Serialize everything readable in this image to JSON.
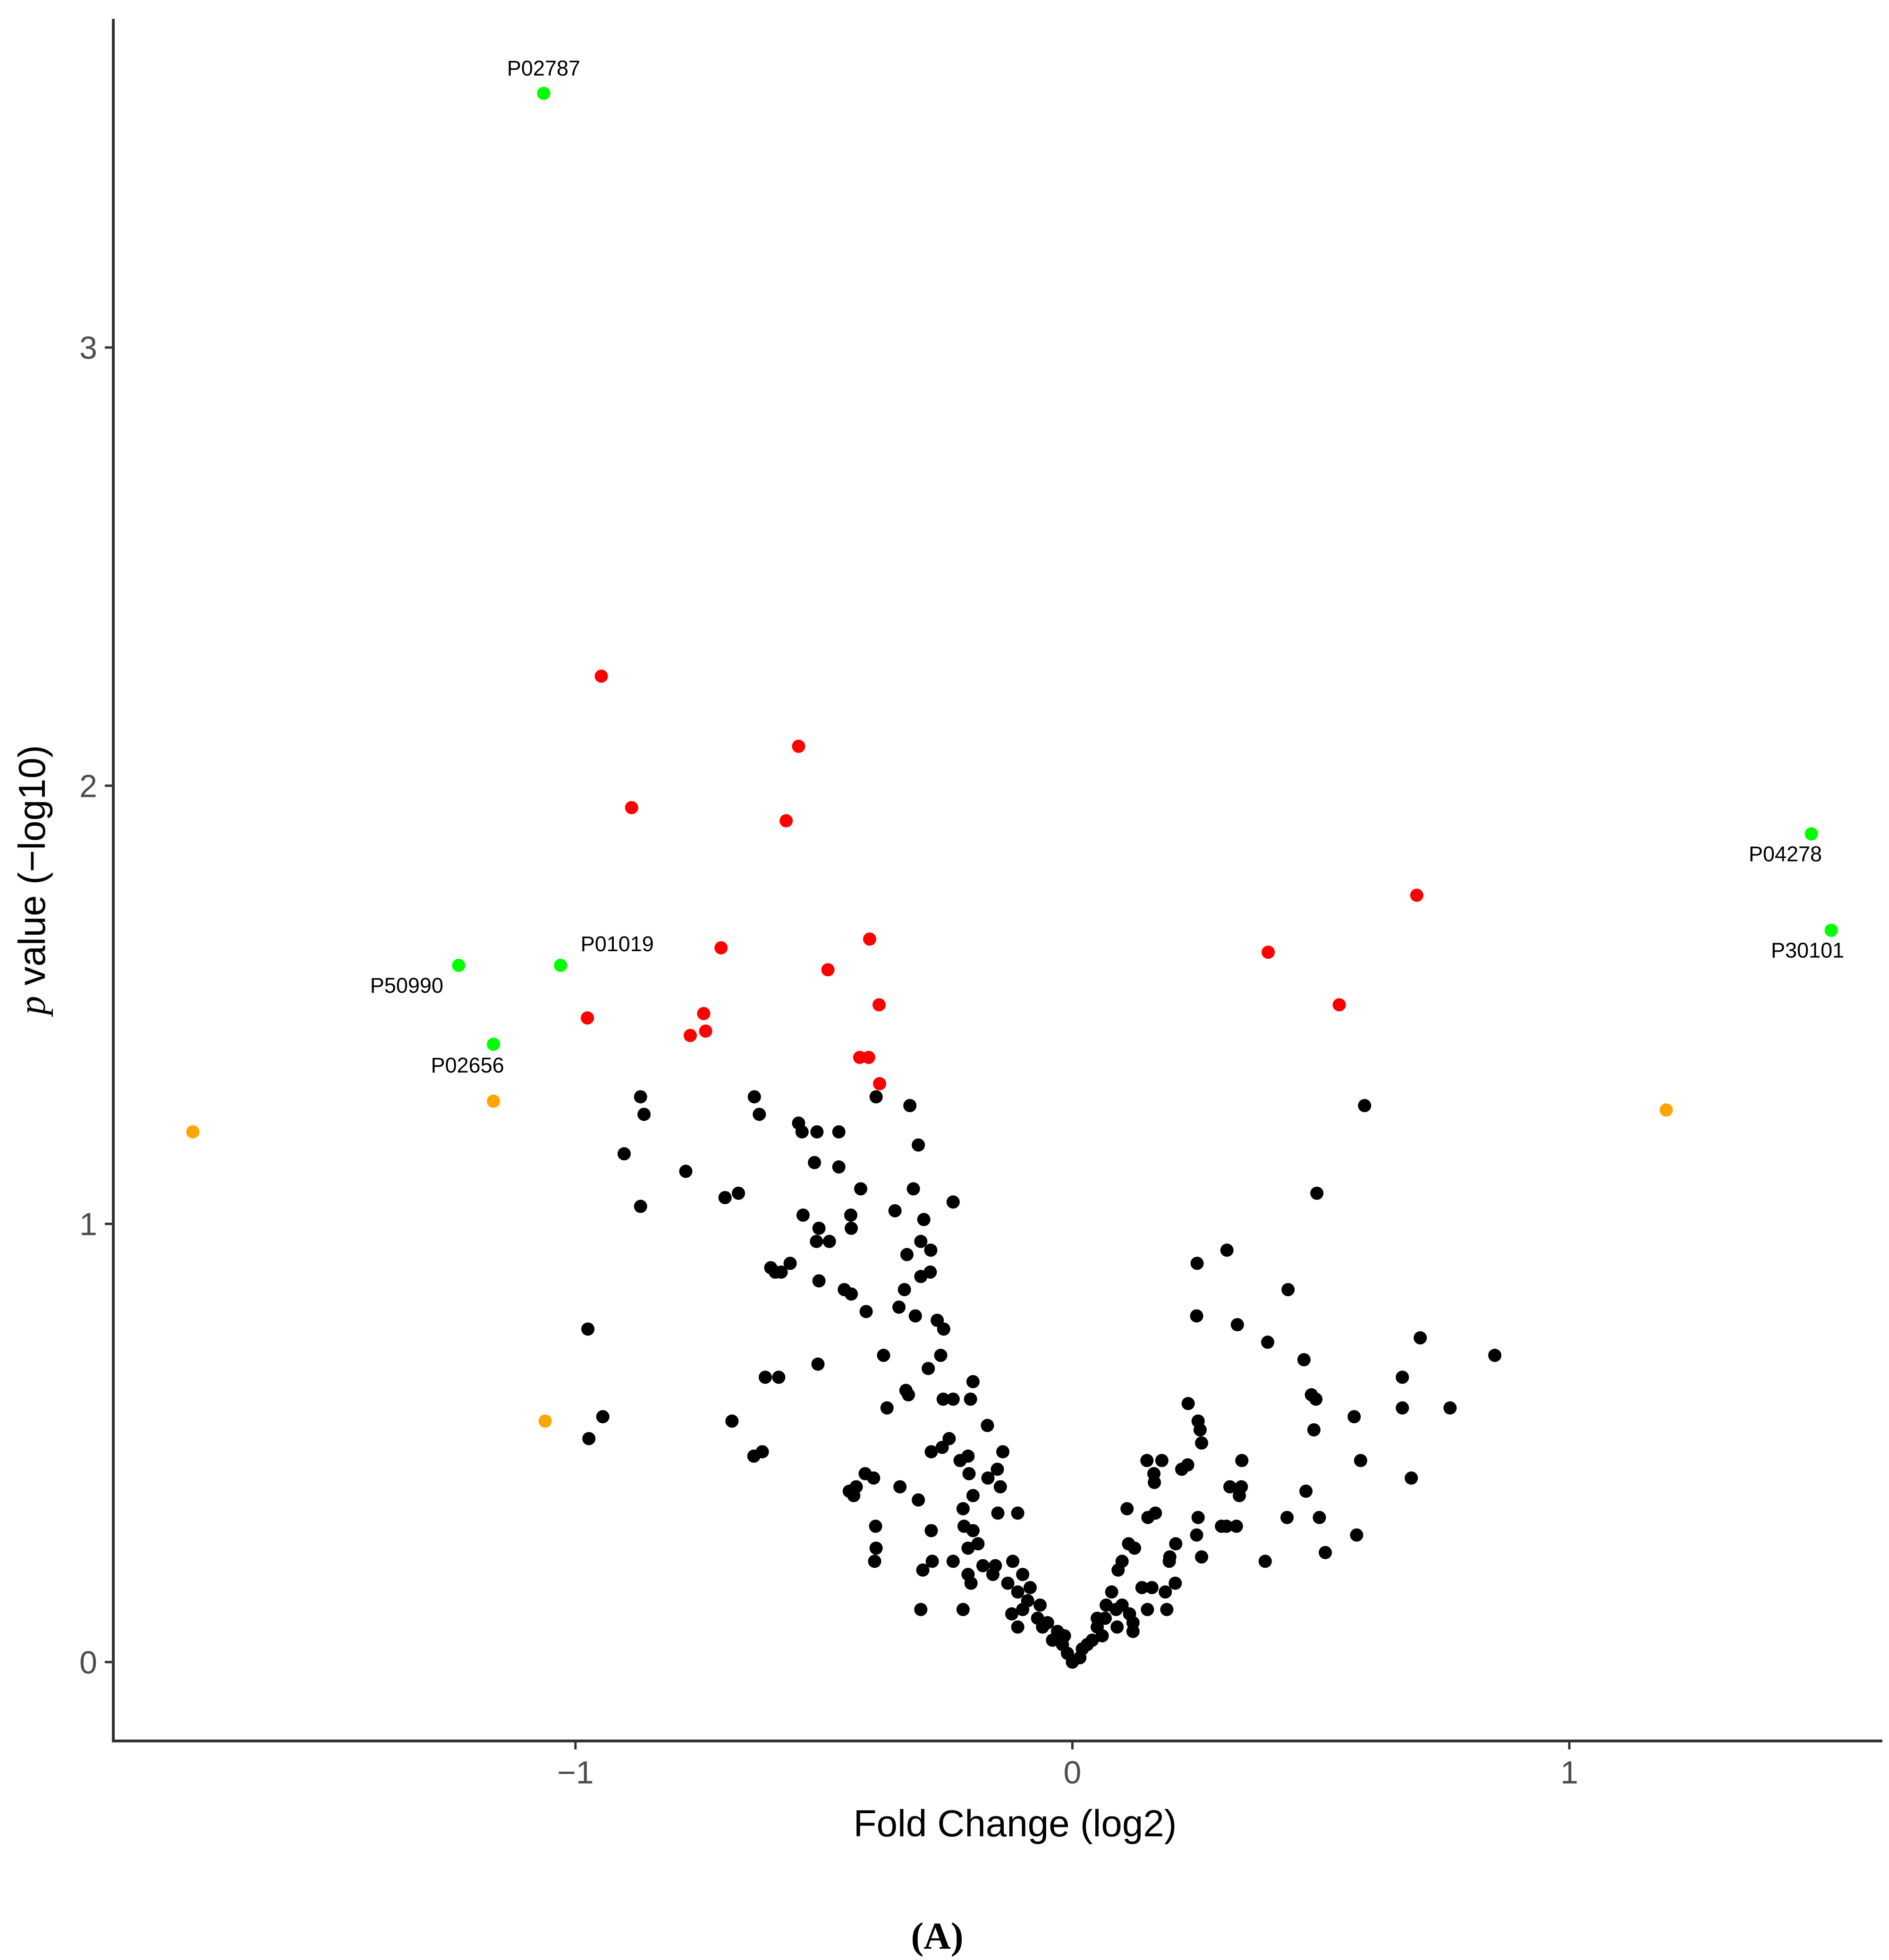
{
  "chart_data": {
    "type": "scatter",
    "title": "",
    "xlabel": "Fold Change (log2)",
    "ylabel_italic": "p",
    "ylabel_rest": " value (−log10)",
    "panel_label": "(A)",
    "xlim": [
      -1.93,
      1.63
    ],
    "ylim": [
      -0.18,
      3.75
    ],
    "x_ticks": [
      -1,
      0,
      1
    ],
    "x_tick_labels": [
      "−1",
      "0",
      "1"
    ],
    "y_ticks": [
      0,
      1,
      2,
      3
    ],
    "y_tick_labels": [
      "0",
      "1",
      "2",
      "3"
    ],
    "grid": false,
    "legend": "none",
    "colors": {
      "labeled": "#00ff00",
      "significant": "#ff0000",
      "large_fold": "#ffa500",
      "not_significant": "#000000"
    },
    "series": [
      {
        "color_key": "labeled",
        "points": [
          {
            "x": -1.064,
            "y": 3.58,
            "label": "P02787"
          },
          {
            "x": -1.235,
            "y": 1.59,
            "label": "P50990"
          },
          {
            "x": -1.03,
            "y": 1.59,
            "label": "P01019"
          },
          {
            "x": -1.165,
            "y": 1.41,
            "label": "P02656"
          },
          {
            "x": 1.487,
            "y": 1.89,
            "label": "P04278"
          },
          {
            "x": 1.527,
            "y": 1.67,
            "label": "P30101"
          }
        ]
      },
      {
        "color_key": "significant",
        "points": [
          {
            "x": -0.948,
            "y": 2.25
          },
          {
            "x": -0.887,
            "y": 1.95
          },
          {
            "x": -0.551,
            "y": 2.09
          },
          {
            "x": -0.576,
            "y": 1.92
          },
          {
            "x": -0.707,
            "y": 1.63
          },
          {
            "x": -0.408,
            "y": 1.65
          },
          {
            "x": -0.492,
            "y": 1.58
          },
          {
            "x": -0.976,
            "y": 1.47
          },
          {
            "x": -0.742,
            "y": 1.48
          },
          {
            "x": -0.738,
            "y": 1.44
          },
          {
            "x": -0.769,
            "y": 1.43
          },
          {
            "x": -0.389,
            "y": 1.5
          },
          {
            "x": -0.428,
            "y": 1.38
          },
          {
            "x": -0.41,
            "y": 1.38
          },
          {
            "x": -0.388,
            "y": 1.32
          },
          {
            "x": 0.394,
            "y": 1.62
          },
          {
            "x": 0.693,
            "y": 1.75
          },
          {
            "x": 0.537,
            "y": 1.5
          }
        ]
      },
      {
        "color_key": "large_fold",
        "points": [
          {
            "x": -1.77,
            "y": 1.21
          },
          {
            "x": -1.165,
            "y": 1.28
          },
          {
            "x": -1.061,
            "y": 0.55
          },
          {
            "x": 1.195,
            "y": 1.26
          }
        ]
      },
      {
        "color_key": "not_significant",
        "points": [
          {
            "x": -0.869,
            "y": 1.29
          },
          {
            "x": -0.862,
            "y": 1.25
          },
          {
            "x": -0.902,
            "y": 1.16
          },
          {
            "x": -0.869,
            "y": 1.04
          },
          {
            "x": -0.975,
            "y": 0.76
          },
          {
            "x": -0.945,
            "y": 0.56
          },
          {
            "x": -0.973,
            "y": 0.51
          },
          {
            "x": -0.778,
            "y": 1.12
          },
          {
            "x": -0.699,
            "y": 1.06
          },
          {
            "x": -0.672,
            "y": 1.07
          },
          {
            "x": -0.64,
            "y": 1.29
          },
          {
            "x": -0.63,
            "y": 1.25
          },
          {
            "x": -0.551,
            "y": 1.23
          },
          {
            "x": -0.544,
            "y": 1.21
          },
          {
            "x": -0.514,
            "y": 1.21
          },
          {
            "x": -0.47,
            "y": 1.21
          },
          {
            "x": -0.519,
            "y": 1.14
          },
          {
            "x": -0.47,
            "y": 1.13
          },
          {
            "x": -0.395,
            "y": 1.29
          },
          {
            "x": -0.327,
            "y": 1.27
          },
          {
            "x": -0.31,
            "y": 1.18
          },
          {
            "x": -0.426,
            "y": 1.08
          },
          {
            "x": -0.32,
            "y": 1.08
          },
          {
            "x": -0.24,
            "y": 1.05
          },
          {
            "x": -0.542,
            "y": 1.02
          },
          {
            "x": -0.51,
            "y": 0.99
          },
          {
            "x": -0.515,
            "y": 0.96
          },
          {
            "x": -0.489,
            "y": 0.96
          },
          {
            "x": -0.446,
            "y": 1.02
          },
          {
            "x": -0.445,
            "y": 0.99
          },
          {
            "x": -0.357,
            "y": 1.03
          },
          {
            "x": -0.299,
            "y": 1.01
          },
          {
            "x": -0.305,
            "y": 0.96
          },
          {
            "x": -0.285,
            "y": 0.94
          },
          {
            "x": -0.333,
            "y": 0.93
          },
          {
            "x": -0.607,
            "y": 0.9
          },
          {
            "x": -0.586,
            "y": 0.89
          },
          {
            "x": -0.568,
            "y": 0.91
          },
          {
            "x": -0.598,
            "y": 0.89
          },
          {
            "x": -0.51,
            "y": 0.87
          },
          {
            "x": -0.459,
            "y": 0.85
          },
          {
            "x": -0.445,
            "y": 0.84
          },
          {
            "x": -0.415,
            "y": 0.8
          },
          {
            "x": -0.338,
            "y": 0.85
          },
          {
            "x": -0.305,
            "y": 0.88
          },
          {
            "x": -0.286,
            "y": 0.89
          },
          {
            "x": -0.349,
            "y": 0.81
          },
          {
            "x": -0.316,
            "y": 0.79
          },
          {
            "x": -0.272,
            "y": 0.78
          },
          {
            "x": -0.259,
            "y": 0.76
          },
          {
            "x": -0.512,
            "y": 0.68
          },
          {
            "x": -0.618,
            "y": 0.65
          },
          {
            "x": -0.591,
            "y": 0.65
          },
          {
            "x": -0.685,
            "y": 0.55
          },
          {
            "x": -0.641,
            "y": 0.47
          },
          {
            "x": -0.624,
            "y": 0.48
          },
          {
            "x": -0.38,
            "y": 0.7
          },
          {
            "x": -0.29,
            "y": 0.67
          },
          {
            "x": -0.265,
            "y": 0.7
          },
          {
            "x": -0.335,
            "y": 0.62
          },
          {
            "x": -0.33,
            "y": 0.61
          },
          {
            "x": -0.373,
            "y": 0.58
          },
          {
            "x": -0.26,
            "y": 0.6
          },
          {
            "x": -0.24,
            "y": 0.6
          },
          {
            "x": -0.2,
            "y": 0.64
          },
          {
            "x": -0.205,
            "y": 0.6
          },
          {
            "x": -0.171,
            "y": 0.54
          },
          {
            "x": -0.284,
            "y": 0.48
          },
          {
            "x": -0.262,
            "y": 0.49
          },
          {
            "x": -0.248,
            "y": 0.51
          },
          {
            "x": -0.226,
            "y": 0.46
          },
          {
            "x": -0.21,
            "y": 0.47
          },
          {
            "x": -0.14,
            "y": 0.48
          },
          {
            "x": -0.151,
            "y": 0.44
          },
          {
            "x": -0.417,
            "y": 0.43
          },
          {
            "x": -0.4,
            "y": 0.42
          },
          {
            "x": -0.347,
            "y": 0.4
          },
          {
            "x": -0.435,
            "y": 0.4
          },
          {
            "x": -0.449,
            "y": 0.39
          },
          {
            "x": -0.44,
            "y": 0.38
          },
          {
            "x": -0.31,
            "y": 0.37
          },
          {
            "x": -0.208,
            "y": 0.43
          },
          {
            "x": -0.17,
            "y": 0.42
          },
          {
            "x": -0.145,
            "y": 0.4
          },
          {
            "x": -0.22,
            "y": 0.35
          },
          {
            "x": -0.2,
            "y": 0.38
          },
          {
            "x": -0.15,
            "y": 0.34
          },
          {
            "x": -0.11,
            "y": 0.34
          },
          {
            "x": -0.396,
            "y": 0.31
          },
          {
            "x": -0.395,
            "y": 0.26
          },
          {
            "x": -0.398,
            "y": 0.23
          },
          {
            "x": -0.284,
            "y": 0.3
          },
          {
            "x": -0.218,
            "y": 0.31
          },
          {
            "x": -0.2,
            "y": 0.3
          },
          {
            "x": -0.21,
            "y": 0.26
          },
          {
            "x": -0.19,
            "y": 0.27
          },
          {
            "x": -0.301,
            "y": 0.21
          },
          {
            "x": -0.282,
            "y": 0.23
          },
          {
            "x": -0.24,
            "y": 0.23
          },
          {
            "x": -0.21,
            "y": 0.2
          },
          {
            "x": -0.204,
            "y": 0.18
          },
          {
            "x": -0.18,
            "y": 0.22
          },
          {
            "x": -0.155,
            "y": 0.22
          },
          {
            "x": -0.16,
            "y": 0.2
          },
          {
            "x": -0.12,
            "y": 0.23
          },
          {
            "x": -0.1,
            "y": 0.2
          },
          {
            "x": -0.13,
            "y": 0.18
          },
          {
            "x": -0.11,
            "y": 0.16
          },
          {
            "x": -0.085,
            "y": 0.17
          },
          {
            "x": -0.09,
            "y": 0.14
          },
          {
            "x": -0.065,
            "y": 0.13
          },
          {
            "x": -0.07,
            "y": 0.1
          },
          {
            "x": -0.05,
            "y": 0.09
          },
          {
            "x": -0.03,
            "y": 0.07
          },
          {
            "x": -0.02,
            "y": 0.04
          },
          {
            "x": -0.01,
            "y": 0.02
          },
          {
            "x": 0.0,
            "y": 0.0
          },
          {
            "x": -0.016,
            "y": 0.06
          },
          {
            "x": -0.04,
            "y": 0.05
          },
          {
            "x": -0.06,
            "y": 0.08
          },
          {
            "x": -0.305,
            "y": 0.12
          },
          {
            "x": -0.22,
            "y": 0.12
          },
          {
            "x": -0.1,
            "y": 0.12
          },
          {
            "x": -0.11,
            "y": 0.08
          },
          {
            "x": -0.122,
            "y": 0.11
          },
          {
            "x": 0.588,
            "y": 1.27
          },
          {
            "x": 0.492,
            "y": 1.07
          },
          {
            "x": 0.311,
            "y": 0.94
          },
          {
            "x": 0.251,
            "y": 0.91
          },
          {
            "x": 0.434,
            "y": 0.85
          },
          {
            "x": 0.25,
            "y": 0.79
          },
          {
            "x": 0.332,
            "y": 0.77
          },
          {
            "x": 0.393,
            "y": 0.73
          },
          {
            "x": 0.7,
            "y": 0.74
          },
          {
            "x": 0.85,
            "y": 0.7
          },
          {
            "x": 0.466,
            "y": 0.69
          },
          {
            "x": 0.664,
            "y": 0.65
          },
          {
            "x": 0.481,
            "y": 0.61
          },
          {
            "x": 0.49,
            "y": 0.6
          },
          {
            "x": 0.233,
            "y": 0.59
          },
          {
            "x": 0.664,
            "y": 0.58
          },
          {
            "x": 0.76,
            "y": 0.58
          },
          {
            "x": 0.253,
            "y": 0.55
          },
          {
            "x": 0.257,
            "y": 0.53
          },
          {
            "x": 0.567,
            "y": 0.56
          },
          {
            "x": 0.486,
            "y": 0.53
          },
          {
            "x": 0.26,
            "y": 0.5
          },
          {
            "x": 0.15,
            "y": 0.46
          },
          {
            "x": 0.18,
            "y": 0.46
          },
          {
            "x": 0.232,
            "y": 0.45
          },
          {
            "x": 0.341,
            "y": 0.46
          },
          {
            "x": 0.164,
            "y": 0.43
          },
          {
            "x": 0.165,
            "y": 0.41
          },
          {
            "x": 0.22,
            "y": 0.44
          },
          {
            "x": 0.58,
            "y": 0.46
          },
          {
            "x": 0.682,
            "y": 0.42
          },
          {
            "x": 0.317,
            "y": 0.4
          },
          {
            "x": 0.336,
            "y": 0.38
          },
          {
            "x": 0.34,
            "y": 0.4
          },
          {
            "x": 0.47,
            "y": 0.39
          },
          {
            "x": 0.11,
            "y": 0.35
          },
          {
            "x": 0.152,
            "y": 0.33
          },
          {
            "x": 0.167,
            "y": 0.34
          },
          {
            "x": 0.253,
            "y": 0.33
          },
          {
            "x": 0.31,
            "y": 0.31
          },
          {
            "x": 0.3,
            "y": 0.31
          },
          {
            "x": 0.33,
            "y": 0.31
          },
          {
            "x": 0.432,
            "y": 0.33
          },
          {
            "x": 0.497,
            "y": 0.33
          },
          {
            "x": 0.572,
            "y": 0.29
          },
          {
            "x": 0.25,
            "y": 0.29
          },
          {
            "x": 0.113,
            "y": 0.27
          },
          {
            "x": 0.125,
            "y": 0.26
          },
          {
            "x": 0.208,
            "y": 0.27
          },
          {
            "x": 0.196,
            "y": 0.24
          },
          {
            "x": 0.195,
            "y": 0.23
          },
          {
            "x": 0.1,
            "y": 0.23
          },
          {
            "x": 0.26,
            "y": 0.24
          },
          {
            "x": 0.388,
            "y": 0.23
          },
          {
            "x": 0.509,
            "y": 0.25
          },
          {
            "x": 0.092,
            "y": 0.21
          },
          {
            "x": 0.14,
            "y": 0.17
          },
          {
            "x": 0.16,
            "y": 0.17
          },
          {
            "x": 0.187,
            "y": 0.16
          },
          {
            "x": 0.207,
            "y": 0.18
          },
          {
            "x": 0.079,
            "y": 0.16
          },
          {
            "x": 0.088,
            "y": 0.12
          },
          {
            "x": 0.068,
            "y": 0.13
          },
          {
            "x": 0.066,
            "y": 0.1
          },
          {
            "x": 0.05,
            "y": 0.1
          },
          {
            "x": 0.05,
            "y": 0.08
          },
          {
            "x": 0.06,
            "y": 0.06
          },
          {
            "x": 0.04,
            "y": 0.05
          },
          {
            "x": 0.03,
            "y": 0.04
          },
          {
            "x": 0.02,
            "y": 0.03
          },
          {
            "x": 0.015,
            "y": 0.01
          },
          {
            "x": 0.1,
            "y": 0.13
          },
          {
            "x": 0.115,
            "y": 0.11
          },
          {
            "x": 0.122,
            "y": 0.09
          },
          {
            "x": 0.151,
            "y": 0.12
          },
          {
            "x": 0.19,
            "y": 0.12
          },
          {
            "x": 0.122,
            "y": 0.07
          },
          {
            "x": 0.09,
            "y": 0.08
          }
        ]
      }
    ]
  }
}
